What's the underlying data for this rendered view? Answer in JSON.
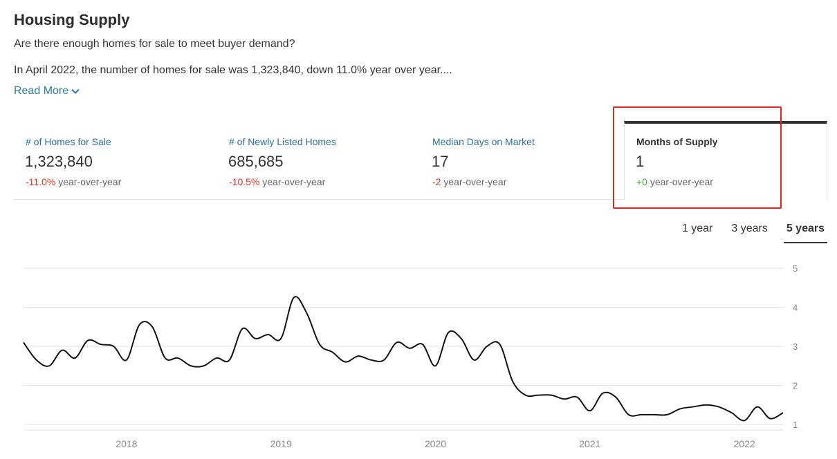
{
  "header": {
    "title": "Housing Supply",
    "subtitle": "Are there enough homes for sale to meet buyer demand?",
    "summary": "In April 2022, the number of homes for sale was 1,323,840, down 11.0% year over year....",
    "read_more": "Read More"
  },
  "stats": [
    {
      "label": "# of Homes for Sale",
      "value": "1,323,840",
      "change": "-11.0%",
      "change_suffix": "year-over-year",
      "direction": "negative"
    },
    {
      "label": "# of Newly Listed Homes",
      "value": "685,685",
      "change": "-10.5%",
      "change_suffix": "year-over-year",
      "direction": "negative"
    },
    {
      "label": "Median Days on Market",
      "value": "17",
      "change": "-2",
      "change_suffix": "year-over-year",
      "direction": "negative"
    },
    {
      "label": "Months of Supply",
      "value": "1",
      "change": "+0",
      "change_suffix": "year-over-year",
      "direction": "positive",
      "selected": true
    }
  ],
  "range_tabs": [
    {
      "label": "1 year",
      "active": false
    },
    {
      "label": "3 years",
      "active": false
    },
    {
      "label": "5 years",
      "active": true
    }
  ],
  "colors": {
    "accent_link": "#2f7a9a",
    "negative": "#d0392b",
    "positive": "#4a9f3c",
    "highlight": "#e0261c",
    "line": "#111111"
  },
  "icons": {
    "read_more": "chevron-down-icon"
  },
  "chart_data": {
    "type": "line",
    "title": "",
    "xlabel": "",
    "ylabel": "",
    "ylim": [
      1,
      5
    ],
    "yticks": [
      1,
      2,
      3,
      4,
      5
    ],
    "xlim": [
      "2017-05",
      "2022-04"
    ],
    "xticks": [
      "2018",
      "2019",
      "2020",
      "2021",
      "2022"
    ],
    "grid": true,
    "y_axis_position": "right",
    "x": [
      "2017-05",
      "2017-06",
      "2017-07",
      "2017-08",
      "2017-09",
      "2017-10",
      "2017-11",
      "2017-12",
      "2018-01",
      "2018-02",
      "2018-03",
      "2018-04",
      "2018-05",
      "2018-06",
      "2018-07",
      "2018-08",
      "2018-09",
      "2018-10",
      "2018-11",
      "2018-12",
      "2019-01",
      "2019-02",
      "2019-03",
      "2019-04",
      "2019-05",
      "2019-06",
      "2019-07",
      "2019-08",
      "2019-09",
      "2019-10",
      "2019-11",
      "2019-12",
      "2020-01",
      "2020-02",
      "2020-03",
      "2020-04",
      "2020-05",
      "2020-06",
      "2020-07",
      "2020-08",
      "2020-09",
      "2020-10",
      "2020-11",
      "2020-12",
      "2021-01",
      "2021-02",
      "2021-03",
      "2021-04",
      "2021-05",
      "2021-06",
      "2021-07",
      "2021-08",
      "2021-09",
      "2021-10",
      "2021-11",
      "2021-12",
      "2022-01",
      "2022-02",
      "2022-03",
      "2022-04"
    ],
    "series": [
      {
        "values": [
          3.1,
          2.65,
          2.5,
          2.9,
          2.7,
          3.15,
          3.05,
          3.0,
          2.65,
          3.55,
          3.5,
          2.7,
          2.7,
          2.5,
          2.5,
          2.7,
          2.65,
          3.45,
          3.2,
          3.3,
          3.2,
          4.25,
          3.85,
          3.05,
          2.85,
          2.6,
          2.75,
          2.65,
          2.65,
          3.1,
          2.95,
          3.05,
          2.5,
          3.35,
          3.2,
          2.65,
          3.0,
          3.05,
          2.1,
          1.75,
          1.75,
          1.75,
          1.65,
          1.7,
          1.35,
          1.8,
          1.7,
          1.25,
          1.25,
          1.25,
          1.25,
          1.4,
          1.45,
          1.5,
          1.45,
          1.3,
          1.1,
          1.45,
          1.15,
          1.3
        ]
      }
    ]
  }
}
